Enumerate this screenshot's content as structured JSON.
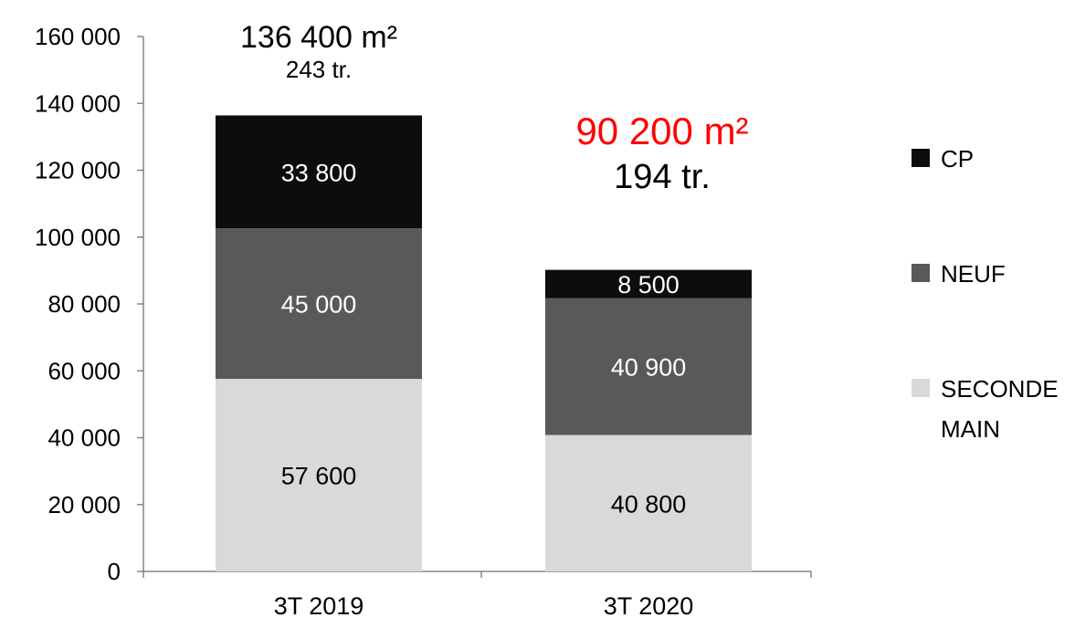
{
  "chart_data": {
    "type": "bar",
    "stacked": true,
    "categories": [
      "3T 2019",
      "3T 2020"
    ],
    "series": [
      {
        "name": "SECONDE MAIN",
        "legend_lines": [
          "SECONDE",
          "MAIN"
        ],
        "values": [
          57600,
          40800
        ],
        "labels": [
          "57 600",
          "40 800"
        ],
        "color": "#d9d9d9",
        "label_color": "#000000"
      },
      {
        "name": "NEUF",
        "legend_lines": [
          "NEUF"
        ],
        "values": [
          45000,
          40900
        ],
        "labels": [
          "45 000",
          "40 900"
        ],
        "color": "#595959",
        "label_color": "#ffffff"
      },
      {
        "name": "CP",
        "legend_lines": [
          "CP"
        ],
        "values": [
          33800,
          8500
        ],
        "labels": [
          "33 800",
          "8 500"
        ],
        "color": "#0d0d0d",
        "label_color": "#ffffff"
      }
    ],
    "totals": [
      {
        "area": "136 400 m²",
        "transactions": "243 tr.",
        "area_color": "#000000"
      },
      {
        "area": "90 200 m²",
        "transactions": "194 tr.",
        "area_color": "#ff0000"
      }
    ],
    "ylim": [
      0,
      160000
    ],
    "yticks": [
      0,
      20000,
      40000,
      60000,
      80000,
      100000,
      120000,
      140000,
      160000
    ],
    "ytick_labels": [
      "0",
      "20 000",
      "40 000",
      "60 000",
      "80 000",
      "100 000",
      "120 000",
      "140 000",
      "160 000"
    ],
    "grid": false,
    "legend_position": "right",
    "title": "",
    "xlabel": "",
    "ylabel": ""
  }
}
